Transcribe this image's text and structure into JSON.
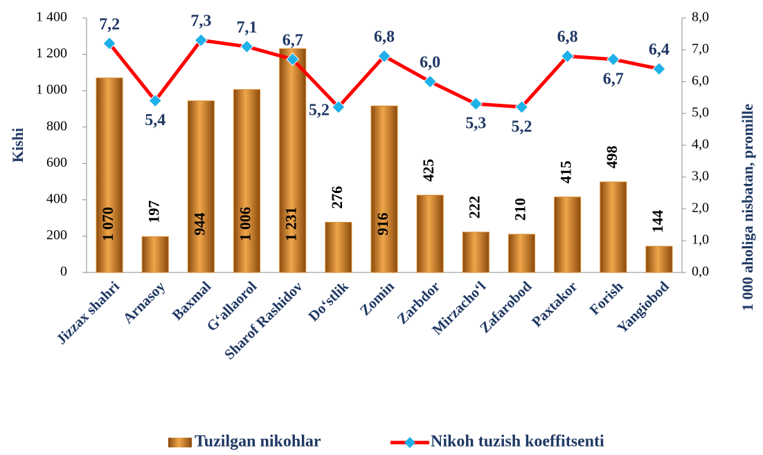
{
  "chart_data": {
    "type": "bar_line",
    "categories": [
      "Jizzax shahri",
      "Arnasoy",
      "Baxmal",
      "G‘allaorol",
      "Sharof Rashidov",
      "Do‘stlik",
      "Zomin",
      "Zarbdor",
      "Mirzacho‘l",
      "Zafarobod",
      "Paxtakor",
      "Forish",
      "Yangiobod"
    ],
    "series": [
      {
        "name": "Tuzilgan nikohlar",
        "type": "bar",
        "color": "#d98a2b",
        "values": [
          1070,
          197,
          944,
          1006,
          1231,
          276,
          916,
          425,
          222,
          210,
          415,
          498,
          144
        ],
        "value_labels": [
          "1 070",
          "197",
          "944",
          "1 006",
          "1 231",
          "276",
          "916",
          "425",
          "222",
          "210",
          "415",
          "498",
          "144"
        ]
      },
      {
        "name": "Nikoh tuzish koeffitsenti",
        "type": "line",
        "axis": "y2",
        "color": "#ff0000",
        "marker_color": "#1fb0e8",
        "values": [
          7.2,
          5.4,
          7.3,
          7.1,
          6.7,
          5.2,
          6.8,
          6.0,
          5.3,
          5.2,
          6.8,
          6.7,
          6.4
        ],
        "value_labels": [
          "7,2",
          "5,4",
          "7,3",
          "7,1",
          "6,7",
          "5,2",
          "6,8",
          "6,0",
          "5,3",
          "5,2",
          "6,8",
          "6,7",
          "6,4"
        ]
      }
    ],
    "y_label": "Kishi",
    "y2_label": "1 000 aholiga nisbatan, promille",
    "ylim": [
      0,
      1400
    ],
    "yticks": [
      0,
      200,
      400,
      600,
      800,
      {
        "value": 1000,
        "label": "1 000"
      },
      {
        "value": 1200,
        "label": "1 200"
      },
      {
        "value": 1400,
        "label": "1 400"
      }
    ],
    "y2lim": [
      0,
      8
    ],
    "y2ticks": [
      {
        "value": 0,
        "label": "0,0"
      },
      {
        "value": 1,
        "label": "1,0"
      },
      {
        "value": 2,
        "label": "2,0"
      },
      {
        "value": 3,
        "label": "3,0"
      },
      {
        "value": 4,
        "label": "4,0"
      },
      {
        "value": 5,
        "label": "5,0"
      },
      {
        "value": 6,
        "label": "6,0"
      },
      {
        "value": 7,
        "label": "7,0"
      },
      {
        "value": 8,
        "label": "8,0"
      }
    ],
    "legend": "bottom"
  }
}
